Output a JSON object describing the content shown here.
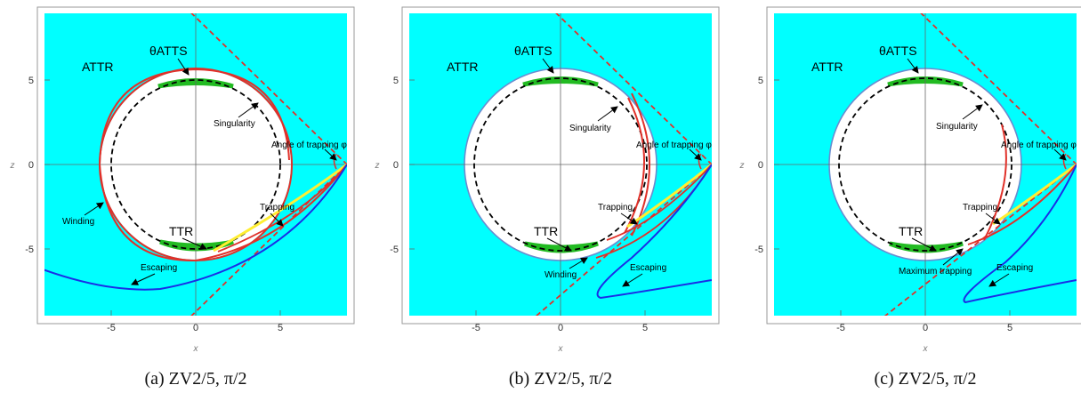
{
  "axes": {
    "xlabel": "x",
    "zlabel": "z",
    "xticks": [
      -5,
      0,
      5
    ],
    "zticks": [
      -5,
      0,
      5
    ],
    "xlim": [
      -9,
      9
    ],
    "zlim": [
      -9,
      9
    ]
  },
  "colors": {
    "region": "#00ffff",
    "singularity": "#000000",
    "boundary_a": "#e0312a",
    "boundary_bc": "#6a8ccf",
    "green_caps": "#22bb22",
    "red_dashed": "#e0312a",
    "blue_orbit": "#1a2ee6",
    "yellow_orbit": "#ffee33"
  },
  "panels": [
    {
      "caption": "(a) ZV2/5, π/2",
      "labels": {
        "attr": "ATTR",
        "theta_atts": "θATTS",
        "singularity": "Singularity",
        "angle": "Angle of trapping φ",
        "winding": "Winding",
        "trapping": "Trapping",
        "ttr": "TTR",
        "escaping": "Escaping"
      }
    },
    {
      "caption": "(b) ZV2/5, π/2",
      "labels": {
        "attr": "ATTR",
        "theta_atts": "θATTS",
        "singularity": "Singularity",
        "angle": "Angle of trapping φ",
        "trapping": "Trapping",
        "ttr": "TTR",
        "winding": "Winding",
        "escaping": "Escaping"
      }
    },
    {
      "caption": "(c) ZV2/5, π/2",
      "labels": {
        "attr": "ATTR",
        "theta_atts": "θATTS",
        "singularity": "Singularity",
        "angle": "Angle of trapping φ",
        "trapping": "Trapping",
        "ttr": "TTR",
        "max_trapping": "Maximum trapping",
        "escaping": "Escaping"
      }
    }
  ]
}
